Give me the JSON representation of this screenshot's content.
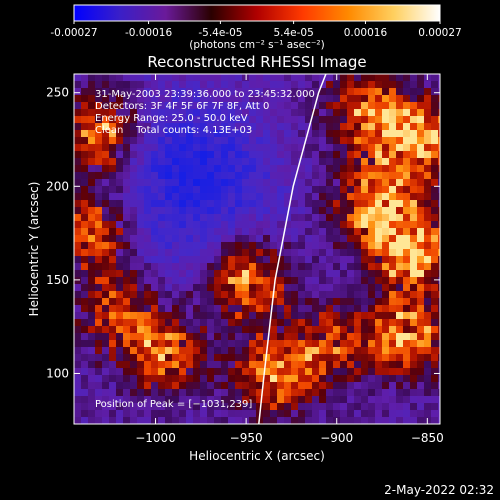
{
  "colorbar": {
    "ticks": [
      "-0.00027",
      "-0.00016",
      "-5.4e-05",
      "5.4e-05",
      "0.00016",
      "0.00027"
    ],
    "tick_values": [
      -0.00027,
      -0.00016,
      -5.4e-05,
      5.4e-05,
      0.00016,
      0.00027
    ],
    "unit_label": "(photons cm⁻² s⁻¹ asec⁻²)",
    "colors": [
      "#0000ff",
      "#3a1fc8",
      "#6a1a9a",
      "#2a0000",
      "#b00000",
      "#ff3a00",
      "#ff8a00",
      "#ffd060",
      "#ffffff"
    ]
  },
  "chart_data": {
    "type": "heatmap",
    "title": "Reconstructed RHESSI Image",
    "xlabel": "Heliocentric X (arcsec)",
    "ylabel": "Heliocentric Y (arcsec)",
    "xlim": [
      -1045,
      -843
    ],
    "ylim": [
      73,
      260
    ],
    "x_ticks": [
      -1000,
      -950,
      -900,
      -850
    ],
    "x_tick_labels": [
      "−1000",
      "−950",
      "−900",
      "−850"
    ],
    "y_ticks": [
      100,
      150,
      200,
      250
    ],
    "y_tick_labels": [
      "100",
      "150",
      "200",
      "250"
    ],
    "annotations": [
      "31-May-2003 23:39:36.000 to 23:45:32.000",
      "Detectors: 3F 4F 5F 6F 7F 8F, Att 0",
      "Energy Range: 25.0 - 50.0 keV",
      "Clean    Total counts: 4.13E+03"
    ],
    "peak_label": "Position of Peak = [−1031,239]",
    "limb_curve": [
      [
        -943,
        73
      ],
      [
        -940,
        100
      ],
      [
        -934,
        150
      ],
      [
        -924,
        200
      ],
      [
        -910,
        250
      ],
      [
        -906,
        260
      ]
    ],
    "hotspots": [
      {
        "x": -855,
        "y": 225,
        "strength": 1.0
      },
      {
        "x": -858,
        "y": 165,
        "strength": 1.0
      },
      {
        "x": -862,
        "y": 120,
        "strength": 0.85
      },
      {
        "x": -880,
        "y": 190,
        "strength": 0.9
      },
      {
        "x": -1030,
        "y": 228,
        "strength": 0.9
      },
      {
        "x": -1035,
        "y": 175,
        "strength": 0.8
      },
      {
        "x": -1020,
        "y": 135,
        "strength": 0.7
      },
      {
        "x": -995,
        "y": 110,
        "strength": 0.75
      },
      {
        "x": -950,
        "y": 150,
        "strength": 0.85
      },
      {
        "x": -935,
        "y": 100,
        "strength": 0.8
      },
      {
        "x": -905,
        "y": 115,
        "strength": 0.6
      },
      {
        "x": -885,
        "y": 240,
        "strength": 0.7
      }
    ],
    "coldspots": [
      {
        "x": -990,
        "y": 220,
        "strength": 1.0
      },
      {
        "x": -960,
        "y": 200,
        "strength": 0.9
      },
      {
        "x": -1000,
        "y": 170,
        "strength": 0.6
      }
    ]
  },
  "footer": {
    "timestamp": "2-May-2022 02:32"
  }
}
